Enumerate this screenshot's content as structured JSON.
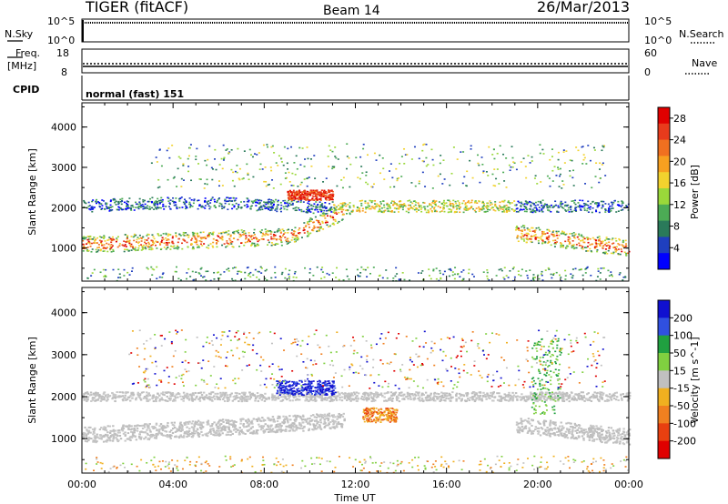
{
  "header": {
    "station": "TIGER (fitACF)",
    "beam": "Beam 14",
    "date": "26/Mar/2013"
  },
  "strip_panels": {
    "nsky": {
      "left_label": "N.Sky",
      "left_ticks": [
        "10^5",
        "10^0"
      ],
      "right_label": "N.Search",
      "right_ticks": [
        "10^5",
        "10^0"
      ]
    },
    "freq": {
      "left_label_1": "Freq.",
      "left_label_2": "[MHz]",
      "left_ticks": [
        "18",
        "8"
      ],
      "right_label": "Nave",
      "right_ticks": [
        "60",
        "0"
      ]
    },
    "cpid": {
      "label": "CPID",
      "value": "normal (fast) 151"
    }
  },
  "chart_data": [
    {
      "type": "heatmap",
      "title": "",
      "ylabel": "Slant Range [km]",
      "xlabel": "",
      "x_range_hours": [
        0,
        24
      ],
      "ylim": [
        180,
        4600
      ],
      "yticks": [
        1000,
        2000,
        3000,
        4000
      ],
      "colorbar": {
        "label": "Power [dB]",
        "ticks": [
          4,
          8,
          12,
          16,
          20,
          24,
          28
        ],
        "colors": [
          "#0000ff",
          "#1f3fbf",
          "#2a7a5a",
          "#4cab55",
          "#9ad83a",
          "#f2d22e",
          "#f7a020",
          "#f07020",
          "#e83b1c",
          "#e00000"
        ]
      },
      "bands": [
        {
          "name": "near-range band",
          "range_km": [
            950,
            1250
          ],
          "power_db": 26
        },
        {
          "name": "2000 km band",
          "range_km": [
            1900,
            2300
          ],
          "power_db": 10
        },
        {
          "name": "high-power patch 09-11 UT",
          "range_km": [
            2150,
            2450
          ],
          "power_db": 28
        }
      ]
    },
    {
      "type": "heatmap",
      "title": "",
      "ylabel": "Slant Range [km]",
      "xlabel": "Time UT",
      "x_range_hours": [
        0,
        24
      ],
      "xticks": [
        "00:00",
        "04:00",
        "08:00",
        "12:00",
        "16:00",
        "20:00",
        "00:00"
      ],
      "ylim": [
        180,
        4600
      ],
      "yticks": [
        1000,
        2000,
        3000,
        4000
      ],
      "colorbar": {
        "label": "Velocity [m s^-1]",
        "ticks": [
          200,
          100,
          50,
          15,
          -15,
          -50,
          -100,
          -200
        ],
        "colors": [
          "#1010d0",
          "#3050e0",
          "#20a040",
          "#80d040",
          "#c0c0c0",
          "#f0b020",
          "#f08020",
          "#e84010",
          "#e00000"
        ]
      },
      "bands": [
        {
          "name": "ground scatter",
          "range_km": [
            900,
            1300
          ],
          "velocity": 0
        },
        {
          "name": "2000 km ground scatter",
          "range_km": [
            1900,
            2150
          ],
          "velocity": 0
        },
        {
          "name": "fast positive patch 09-11 UT",
          "range_km": [
            2000,
            2400
          ],
          "velocity": 220
        },
        {
          "name": "negative patch 12-14 UT",
          "range_km": [
            1400,
            1700
          ],
          "velocity": -70
        }
      ]
    }
  ]
}
